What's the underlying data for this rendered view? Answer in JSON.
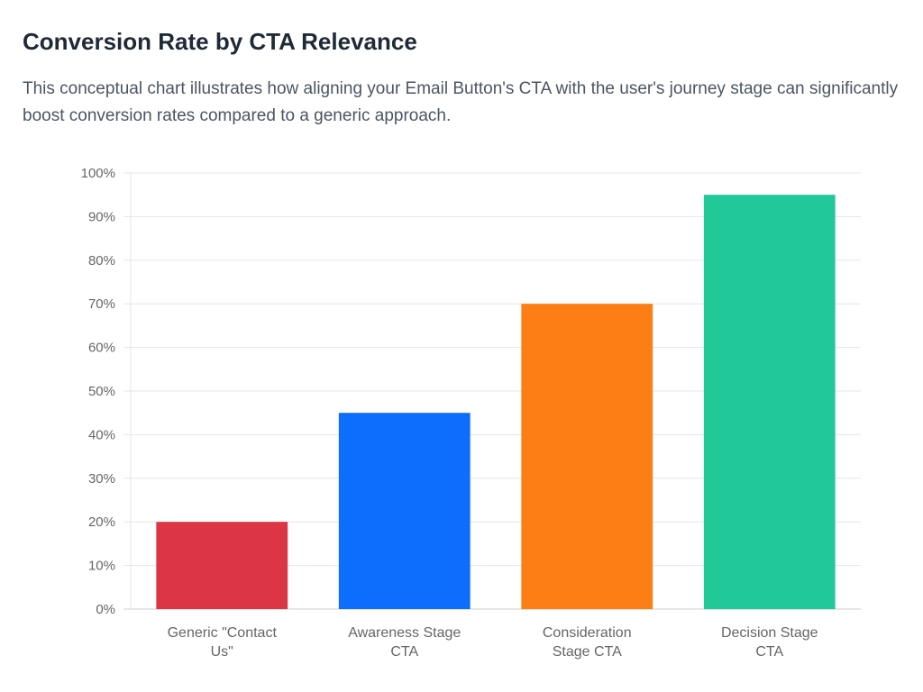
{
  "header": {
    "title": "Conversion Rate by CTA Relevance",
    "subtitle": "This conceptual chart illustrates how aligning your Email Button's CTA with the user's journey stage can significantly boost conversion rates compared to a generic approach."
  },
  "chart_data": {
    "type": "bar",
    "categories": [
      [
        "Generic \"Contact",
        "Us\""
      ],
      [
        "Awareness Stage",
        "CTA"
      ],
      [
        "Consideration",
        "Stage CTA"
      ],
      [
        "Decision Stage",
        "CTA"
      ]
    ],
    "values": [
      20,
      45,
      70,
      95
    ],
    "colors": [
      "#dc3545",
      "#0d6efd",
      "#fd7e14",
      "#20c997"
    ],
    "ylim": [
      0,
      100
    ],
    "yticks": [
      0,
      10,
      20,
      30,
      40,
      50,
      60,
      70,
      80,
      90,
      100
    ],
    "ytick_labels": [
      "0%",
      "10%",
      "20%",
      "30%",
      "40%",
      "50%",
      "60%",
      "70%",
      "80%",
      "90%",
      "100%"
    ],
    "grid": true,
    "legend": false
  }
}
